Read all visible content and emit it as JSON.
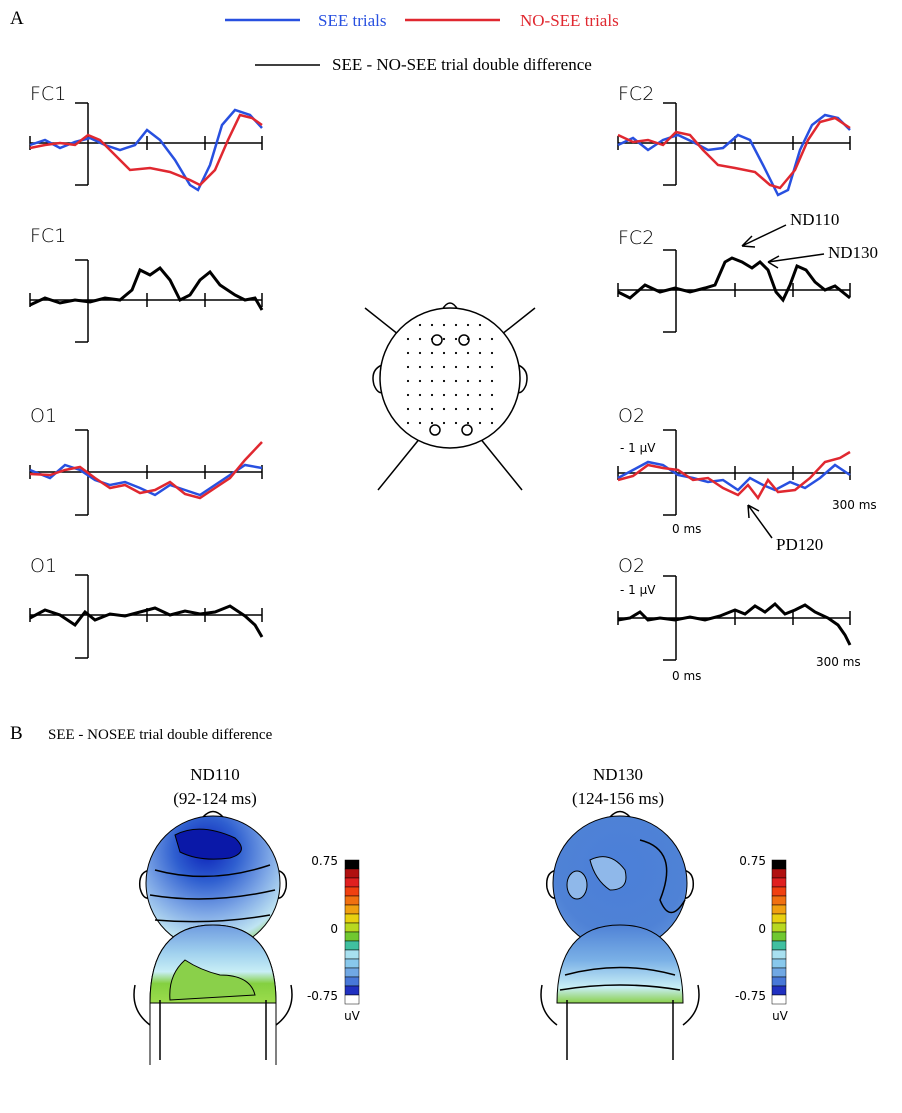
{
  "panel_a": {
    "label": "A",
    "legend": [
      "SEE trials",
      "NO-SEE trials",
      "SEE - NO-SEE trial double difference"
    ],
    "plots": [
      {
        "label": "FC1"
      },
      {
        "label": "FC1"
      },
      {
        "label": "O1"
      },
      {
        "label": "O1"
      },
      {
        "label": "FC2"
      },
      {
        "label": "FC2"
      },
      {
        "label": "O2",
        "amplitude": "- 1 µV",
        "onset": "0 ms",
        "end": "300 ms"
      },
      {
        "label": "O2",
        "amplitude": "- 1 µV",
        "onset": "0 ms",
        "end": "300 ms"
      }
    ],
    "annotations": [
      "ND110",
      "ND130",
      "PD120"
    ]
  },
  "panel_b": {
    "label": "B",
    "title": "SEE - NOSEE trial double difference",
    "maps": [
      {
        "name": "ND110",
        "window": "(92-124 ms)",
        "colorbar": {
          "max": 0.75,
          "mid": 0,
          "min": -0.75,
          "unit": "uV"
        }
      },
      {
        "name": "ND130",
        "window": "(124-156 ms)",
        "colorbar": {
          "max": 0.75,
          "mid": 0,
          "min": -0.75,
          "unit": "uV"
        }
      }
    ]
  }
}
